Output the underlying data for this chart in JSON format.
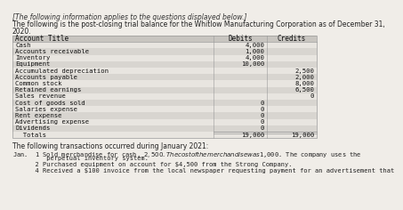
{
  "header_italic": "[The following information applies to the questions displayed below.]",
  "intro_line1": "The following is the post-closing trial balance for the Whitlow Manufacturing Corporation as of December 31,",
  "intro_line2": "2020.",
  "table_headers": [
    "Account Title",
    "Debits",
    "Credits"
  ],
  "rows": [
    [
      "Cash",
      "4,000",
      ""
    ],
    [
      "Accounts receivable",
      "1,000",
      ""
    ],
    [
      "Inventory",
      "4,000",
      ""
    ],
    [
      "Equipment",
      "10,000",
      ""
    ],
    [
      "Accumulated depreciation",
      "",
      "2,500"
    ],
    [
      "Accounts payable",
      "",
      "2,000"
    ],
    [
      "Common stock",
      "",
      "8,000"
    ],
    [
      "Retained earnings",
      "",
      "6,500"
    ],
    [
      "Sales revenue",
      "",
      "0"
    ],
    [
      "Cost of goods sold",
      "0",
      ""
    ],
    [
      "Salaries expense",
      "0",
      ""
    ],
    [
      "Rent expense",
      "0",
      ""
    ],
    [
      "Advertising expense",
      "0",
      ""
    ],
    [
      "Dividends",
      "0",
      ""
    ],
    [
      "  Totals",
      "19,000",
      "19,000"
    ]
  ],
  "transactions_header": "The following transactions occurred during January 2021:",
  "trans_lines": [
    "Jan.  1 Sold merchandise for cash, $2,500. The cost of the merchandise was $1,000. The company uses the",
    "         perpetual inventory system.",
    "      2 Purchased equipment on account for $4,500 from the Strong Company.",
    "      4 Received a $100 invoice from the local newspaper requesting payment for an advertisement that"
  ],
  "bg_color": "#f0ede8",
  "table_header_bg": "#c8c5c0",
  "row_bg1": "#e8e5e0",
  "row_bg2": "#d8d5d0",
  "border_color": "#999999",
  "totals_row_idx": 14
}
